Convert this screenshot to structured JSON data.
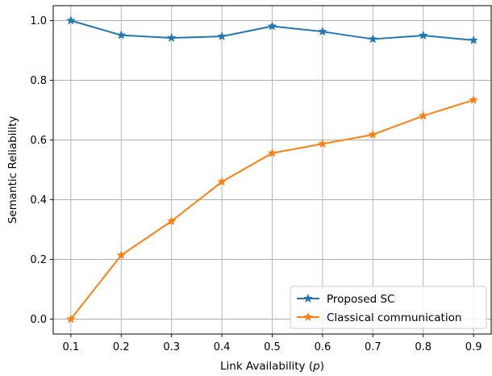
{
  "chart_data": {
    "type": "line",
    "title": "",
    "xlabel": "Link Availability (",
    "xlabel_var": "p",
    "xlabel_end": ")",
    "ylabel": "Semantic Reliability",
    "x": [
      0.1,
      0.2,
      0.3,
      0.4,
      0.5,
      0.6,
      0.7,
      0.8,
      0.9
    ],
    "xlim": [
      0.065,
      0.935
    ],
    "ylim": [
      -0.05,
      1.05
    ],
    "xticks": [
      "0.1",
      "0.2",
      "0.3",
      "0.4",
      "0.5",
      "0.6",
      "0.7",
      "0.8",
      "0.9"
    ],
    "yticks": [
      "0.0",
      "0.2",
      "0.4",
      "0.6",
      "0.8",
      "1.0"
    ],
    "grid": true,
    "legend_position": "bottom-right",
    "marker": "star",
    "series": [
      {
        "name": "Proposed SC",
        "color": "#1f77b4",
        "values": [
          1.0,
          0.951,
          0.942,
          0.947,
          0.981,
          0.963,
          0.938,
          0.95,
          0.934
        ]
      },
      {
        "name": "Classical communication",
        "color": "#ff7f0e",
        "values": [
          0.0,
          0.214,
          0.328,
          0.46,
          0.556,
          0.587,
          0.618,
          0.681,
          0.734
        ]
      }
    ]
  }
}
